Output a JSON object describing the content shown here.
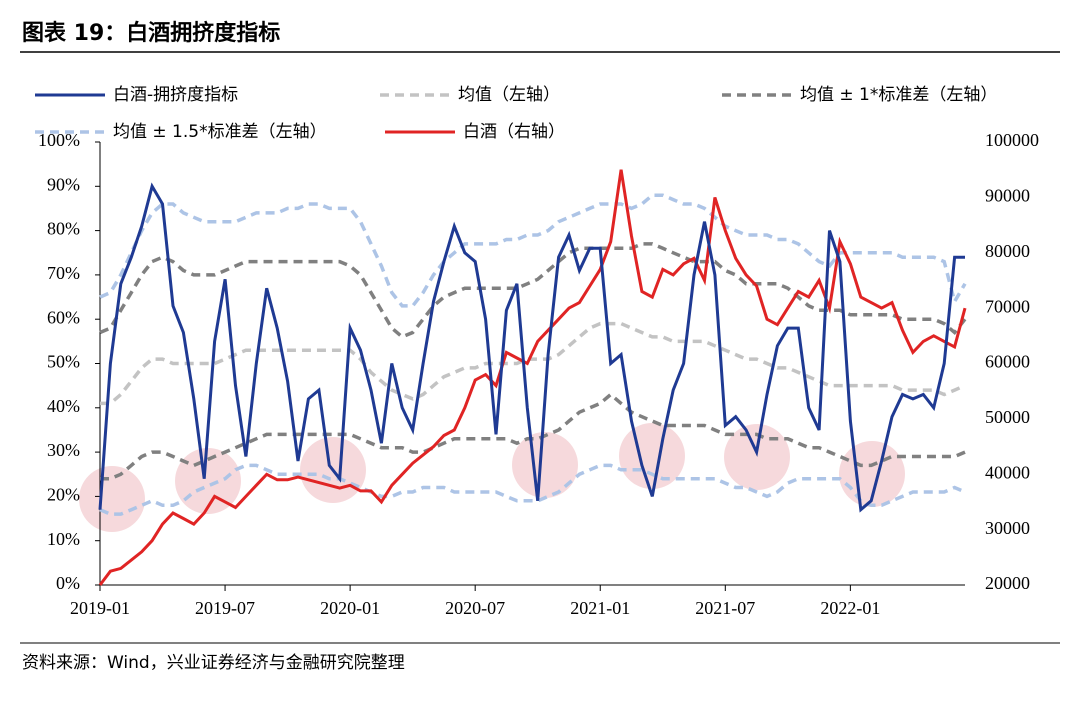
{
  "chart_data": {
    "type": "line",
    "title": "图表 19：白酒拥挤度指标",
    "source": "资料来源：Wind，兴业证券经济与金融研究院整理",
    "categories": [
      "2019-01",
      null,
      null,
      null,
      null,
      null,
      null,
      null,
      null,
      null,
      null,
      null,
      "2019-07",
      null,
      null,
      null,
      null,
      null,
      null,
      null,
      null,
      null,
      null,
      null,
      "2020-01",
      null,
      null,
      null,
      null,
      null,
      null,
      null,
      null,
      null,
      null,
      null,
      "2020-07",
      null,
      null,
      null,
      null,
      null,
      null,
      null,
      null,
      null,
      null,
      null,
      "2021-01",
      null,
      null,
      null,
      null,
      null,
      null,
      null,
      null,
      null,
      null,
      null,
      "2021-07",
      null,
      null,
      null,
      null,
      null,
      null,
      null,
      null,
      null,
      null,
      null,
      "2022-01",
      null,
      null,
      null,
      null,
      null,
      null,
      null,
      null,
      null,
      null,
      null
    ],
    "ylim": [
      0,
      100
    ],
    "yticks": [
      {
        "value": 0,
        "label": "0%"
      },
      {
        "value": 10,
        "label": "10%"
      },
      {
        "value": 20,
        "label": "20%"
      },
      {
        "value": 30,
        "label": "30%"
      },
      {
        "value": 40,
        "label": "40%"
      },
      {
        "value": 50,
        "label": "50%"
      },
      {
        "value": 60,
        "label": "60%"
      },
      {
        "value": 70,
        "label": "70%"
      },
      {
        "value": 80,
        "label": "80%"
      },
      {
        "value": 90,
        "label": "90%"
      },
      {
        "value": 100,
        "label": "100%"
      }
    ],
    "y2lim": [
      20000,
      100000
    ],
    "y2ticks": [
      20000,
      30000,
      40000,
      50000,
      60000,
      70000,
      80000,
      90000,
      100000
    ],
    "series": [
      {
        "name": "白酒-拥挤度指标",
        "color": "#1f3a93",
        "style": "solid",
        "values": [
          17,
          50,
          68,
          74,
          81,
          90,
          86,
          63,
          57,
          42,
          24,
          55,
          69,
          45,
          29,
          50,
          67,
          58,
          46,
          28,
          42,
          44,
          27,
          24,
          58,
          53,
          44,
          32,
          50,
          40,
          35,
          50,
          64,
          73,
          81,
          75,
          73,
          60,
          34,
          62,
          68,
          40,
          19,
          52,
          74,
          79,
          71,
          76,
          76,
          50,
          52,
          37,
          27,
          20,
          33,
          44,
          50,
          70,
          82,
          70,
          36,
          38,
          35,
          30,
          43,
          54,
          58,
          58,
          40,
          35,
          80,
          73,
          37,
          17,
          19,
          28,
          38,
          43,
          42,
          43,
          40,
          50,
          74,
          74
        ]
      },
      {
        "name": "均值（左轴）",
        "color": "#c3c3c3",
        "style": "dashed",
        "values": [
          41,
          41,
          43,
          46,
          49,
          51,
          51,
          50,
          50,
          50,
          50,
          50,
          51,
          52,
          53,
          53,
          53,
          53,
          53,
          53,
          53,
          53,
          53,
          53,
          53,
          51,
          48,
          46,
          44,
          43,
          42,
          43,
          45,
          47,
          48,
          49,
          49,
          50,
          50,
          50,
          50,
          51,
          51,
          51,
          52,
          54,
          56,
          58,
          59,
          59,
          59,
          58,
          57,
          56,
          56,
          55,
          55,
          55,
          55,
          54,
          53,
          52,
          51,
          51,
          50,
          49,
          49,
          48,
          47,
          46,
          45,
          45,
          45,
          45,
          45,
          45,
          45,
          44,
          44,
          44,
          44,
          43,
          44,
          45
        ]
      },
      {
        "name": "均值 ± 1*标准差（左轴）",
        "color": "#808080",
        "style": "dashed",
        "values": [
          57,
          58,
          62,
          66,
          70,
          73,
          74,
          73,
          71,
          70,
          70,
          70,
          71,
          72,
          73,
          73,
          73,
          73,
          73,
          73,
          73,
          73,
          73,
          73,
          72,
          70,
          66,
          62,
          58,
          56,
          57,
          60,
          63,
          65,
          66,
          67,
          67,
          67,
          67,
          67,
          67,
          68,
          69,
          71,
          73,
          75,
          76,
          76,
          76,
          76,
          76,
          76,
          77,
          77,
          76,
          75,
          74,
          73,
          73,
          73,
          71,
          70,
          68,
          68,
          68,
          68,
          67,
          65,
          63,
          62,
          62,
          62,
          61,
          61,
          61,
          61,
          61,
          60,
          60,
          60,
          60,
          59,
          57,
          60
        ],
        "values_lower": [
          24,
          24,
          25,
          27,
          29,
          30,
          30,
          29,
          28,
          27,
          28,
          29,
          30,
          31,
          32,
          33,
          34,
          34,
          34,
          34,
          34,
          34,
          34,
          34,
          34,
          33,
          32,
          31,
          31,
          31,
          30,
          30,
          31,
          32,
          33,
          33,
          33,
          33,
          33,
          33,
          32,
          33,
          33,
          34,
          35,
          37,
          39,
          40,
          41,
          43,
          41,
          39,
          38,
          37,
          36,
          36,
          36,
          36,
          36,
          35,
          34,
          34,
          34,
          34,
          33,
          33,
          33,
          32,
          31,
          31,
          30,
          29,
          28,
          27,
          27,
          28,
          29,
          29,
          29,
          29,
          29,
          29,
          29,
          30
        ]
      },
      {
        "name": "均值 ± 1.5*标准差（左轴）",
        "color": "#adc4e6",
        "style": "dashed",
        "values": [
          65,
          66,
          70,
          75,
          80,
          84,
          86,
          86,
          84,
          83,
          82,
          82,
          82,
          82,
          83,
          84,
          84,
          84,
          85,
          85,
          86,
          86,
          85,
          85,
          85,
          82,
          77,
          72,
          66,
          63,
          63,
          66,
          70,
          73,
          75,
          77,
          77,
          77,
          77,
          78,
          78,
          79,
          79,
          80,
          82,
          83,
          84,
          85,
          86,
          86,
          86,
          85,
          86,
          88,
          88,
          87,
          86,
          86,
          85,
          83,
          81,
          80,
          79,
          79,
          79,
          78,
          78,
          77,
          75,
          73,
          72,
          75,
          75,
          75,
          75,
          75,
          75,
          74,
          74,
          74,
          74,
          73,
          64,
          68
        ],
        "values_lower": [
          17,
          16,
          16,
          17,
          18,
          19,
          18,
          18,
          19,
          21,
          22,
          23,
          24,
          26,
          27,
          27,
          26,
          25,
          25,
          25,
          25,
          25,
          24,
          24,
          23,
          22,
          21,
          20,
          20,
          21,
          21,
          22,
          22,
          22,
          21,
          21,
          21,
          21,
          21,
          20,
          19,
          19,
          19,
          20,
          21,
          23,
          25,
          26,
          27,
          27,
          26,
          26,
          26,
          25,
          24,
          24,
          24,
          24,
          24,
          24,
          23,
          22,
          22,
          21,
          20,
          21,
          23,
          24,
          24,
          24,
          24,
          24,
          22,
          19,
          18,
          18,
          19,
          20,
          21,
          21,
          21,
          21,
          22,
          21
        ]
      },
      {
        "name": "白酒（右轴）",
        "color": "#e02424",
        "style": "solid",
        "axis": "y2",
        "values": [
          20000,
          22500,
          23000,
          24500,
          26000,
          28000,
          31000,
          33000,
          32000,
          31000,
          33000,
          36000,
          35000,
          34000,
          36000,
          38000,
          40000,
          39000,
          39000,
          39500,
          39000,
          38500,
          38000,
          37500,
          38000,
          37000,
          37000,
          35000,
          38000,
          40000,
          42000,
          43500,
          45000,
          47000,
          48000,
          52000,
          57000,
          58000,
          56000,
          62000,
          61000,
          60000,
          64000,
          66000,
          68000,
          70000,
          71000,
          74000,
          77000,
          82000,
          95000,
          83000,
          73000,
          72000,
          77000,
          76000,
          78000,
          79000,
          75000,
          90000,
          84000,
          79000,
          76000,
          74000,
          68000,
          67000,
          70000,
          73000,
          72000,
          75000,
          70000,
          82000,
          78000,
          72000,
          71000,
          70000,
          71000,
          66000,
          62000,
          64000,
          65000,
          64000,
          63000,
          70000
        ]
      }
    ]
  }
}
